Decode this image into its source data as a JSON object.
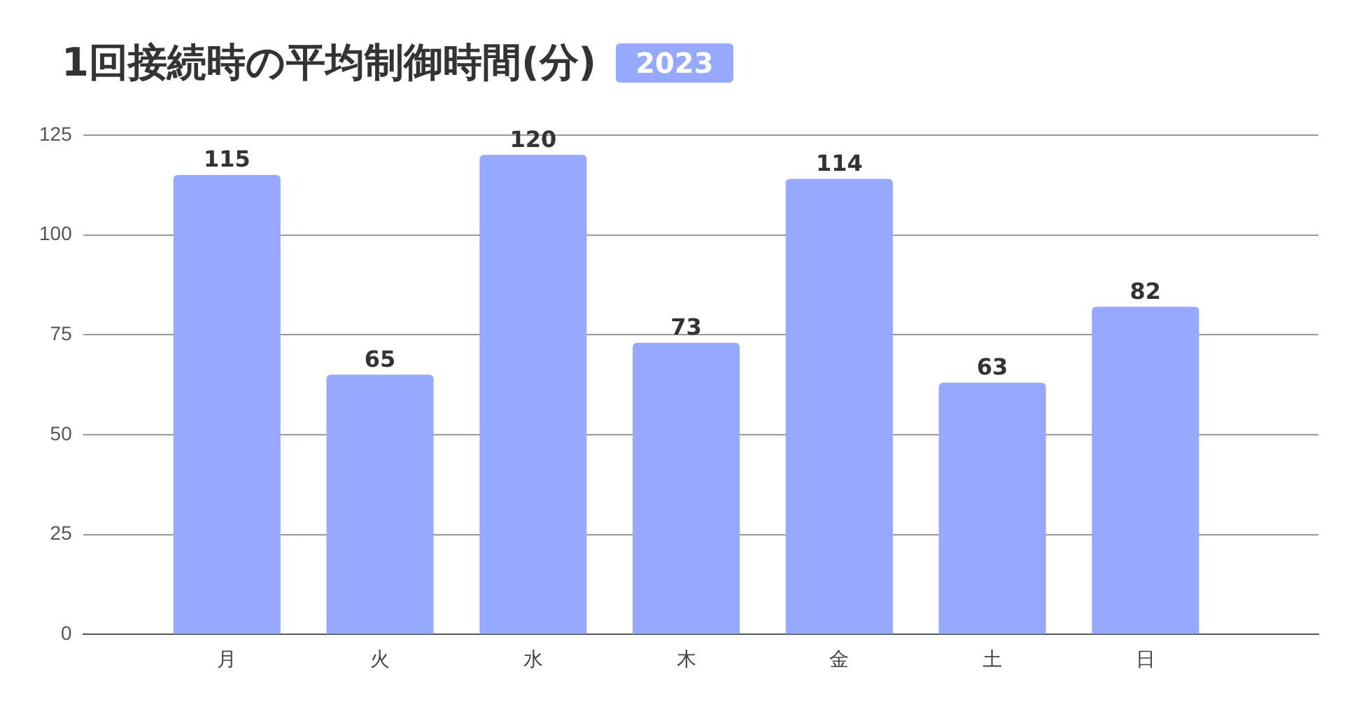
{
  "chart_data": {
    "type": "bar",
    "title": "1回接続時の平均制御時間(分)",
    "subtitle": "2023",
    "categories": [
      "月",
      "火",
      "水",
      "木",
      "金",
      "土",
      "日"
    ],
    "values": [
      115,
      65,
      120,
      73,
      114,
      63,
      82
    ],
    "color": "#96a9fd",
    "ylim": [
      0,
      125
    ],
    "yticks": [
      0,
      25,
      50,
      75,
      100,
      125
    ],
    "grid": "y",
    "data_labels": true
  }
}
